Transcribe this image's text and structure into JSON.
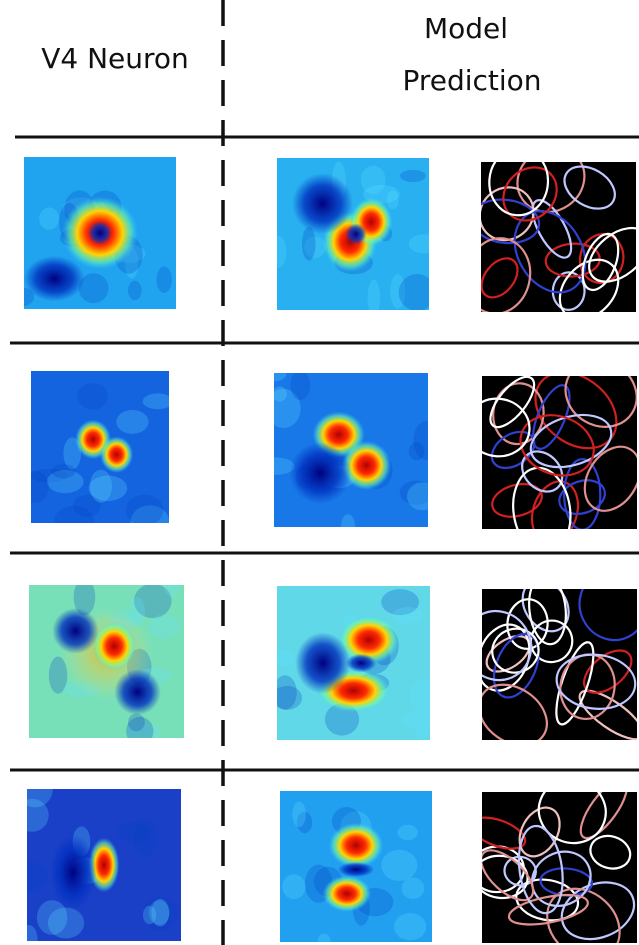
{
  "header": {
    "left": "V4 Neuron",
    "right_line1": "Model",
    "right_line2": "Prediction"
  }
}
